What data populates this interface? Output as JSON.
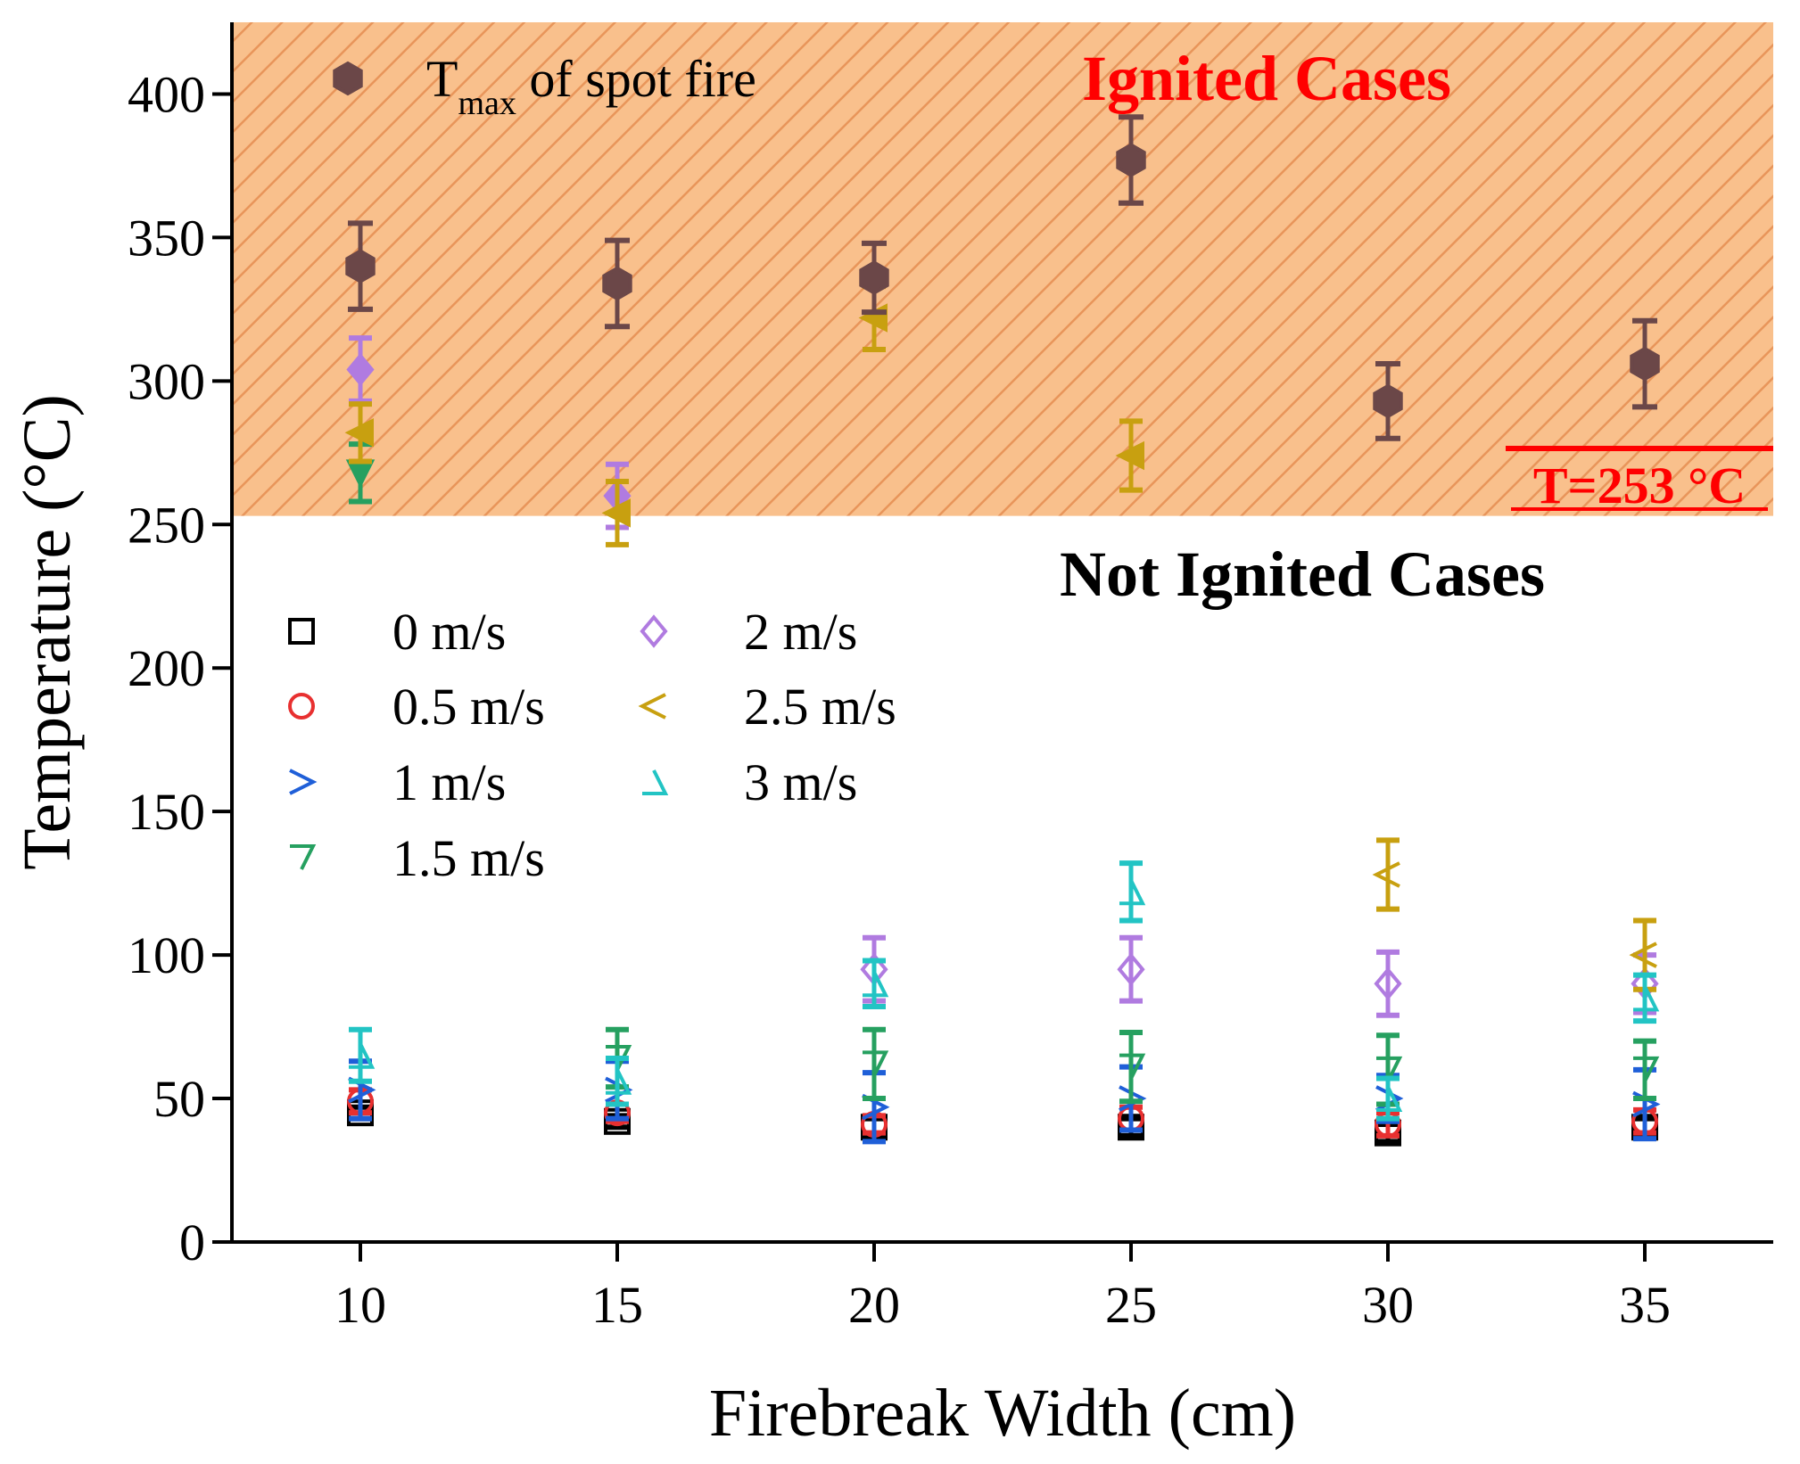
{
  "chart_data": {
    "type": "scatter",
    "title": "",
    "xlabel": "Firebreak Width (cm)",
    "ylabel": "Temperature (°C)",
    "xlim": [
      7.5,
      37.5
    ],
    "ylim": [
      0,
      425
    ],
    "x": [
      10,
      15,
      20,
      25,
      30,
      35
    ],
    "xticks": [
      "10",
      "15",
      "20",
      "25",
      "30",
      "35"
    ],
    "yticks": [
      "0",
      "50",
      "100",
      "150",
      "200",
      "250",
      "300",
      "350",
      "400"
    ],
    "threshold": {
      "value": 253,
      "label": "T=253 °C"
    },
    "regions": {
      "ignited": "Ignited Cases",
      "not_ignited": "Not Ignited Cases"
    },
    "tmax_legend": {
      "main": "T",
      "sub": "max",
      "rest": " of spot fire"
    },
    "colors": {
      "ignited_fill": "#f9c08c",
      "hatch": "#e8955a",
      "threshold": "#ff0000",
      "tmax": "#6b4748"
    },
    "series": [
      {
        "name": "0 m/s",
        "color": "#000000",
        "marker": "square",
        "values": [
          45,
          42,
          40,
          40,
          38,
          40
        ],
        "errors": [
          2,
          2,
          3,
          3,
          3,
          3
        ],
        "ignited": []
      },
      {
        "name": "0.5 m/s",
        "color": "#e83030",
        "marker": "circle",
        "values": [
          49,
          45,
          41,
          43,
          41,
          42
        ],
        "errors": [
          4,
          3,
          3,
          4,
          4,
          4
        ],
        "ignited": []
      },
      {
        "name": "1 m/s",
        "color": "#1f5fd8",
        "marker": "tri-right",
        "values": [
          53,
          53,
          47,
          50,
          50,
          48
        ],
        "errors": [
          10,
          10,
          12,
          11,
          8,
          12
        ],
        "ignited": []
      },
      {
        "name": "1.5 m/s",
        "color": "#26a060",
        "marker": "tri-down",
        "values": [
          268,
          64,
          62,
          61,
          60,
          60
        ],
        "errors": [
          10,
          10,
          12,
          12,
          12,
          10
        ],
        "ignited": [
          10
        ]
      },
      {
        "name": "2 m/s",
        "color": "#b07be0",
        "marker": "diamond",
        "values": [
          304,
          260,
          95,
          95,
          90,
          90
        ],
        "errors": [
          11,
          11,
          11,
          11,
          11,
          10
        ],
        "ignited": [
          10,
          15
        ]
      },
      {
        "name": "2.5 m/s",
        "color": "#c8a010",
        "marker": "tri-left",
        "values": [
          282,
          254,
          322,
          274,
          128,
          100
        ],
        "errors": [
          10,
          11,
          11,
          12,
          12,
          12
        ],
        "ignited": [
          10,
          15,
          20,
          25
        ]
      },
      {
        "name": "3 m/s",
        "color": "#22c4c4",
        "marker": "tri-up",
        "values": [
          65,
          56,
          90,
          122,
          50,
          85
        ],
        "errors": [
          9,
          8,
          8,
          10,
          7,
          8
        ],
        "ignited": []
      },
      {
        "name": "Tmax of spot fire",
        "color": "#6b4748",
        "marker": "hexagon",
        "values": [
          340,
          334,
          336,
          377,
          293,
          306
        ],
        "errors": [
          15,
          15,
          12,
          15,
          13,
          15
        ],
        "ignited": [
          10,
          15,
          20,
          25,
          30,
          35
        ]
      }
    ]
  }
}
